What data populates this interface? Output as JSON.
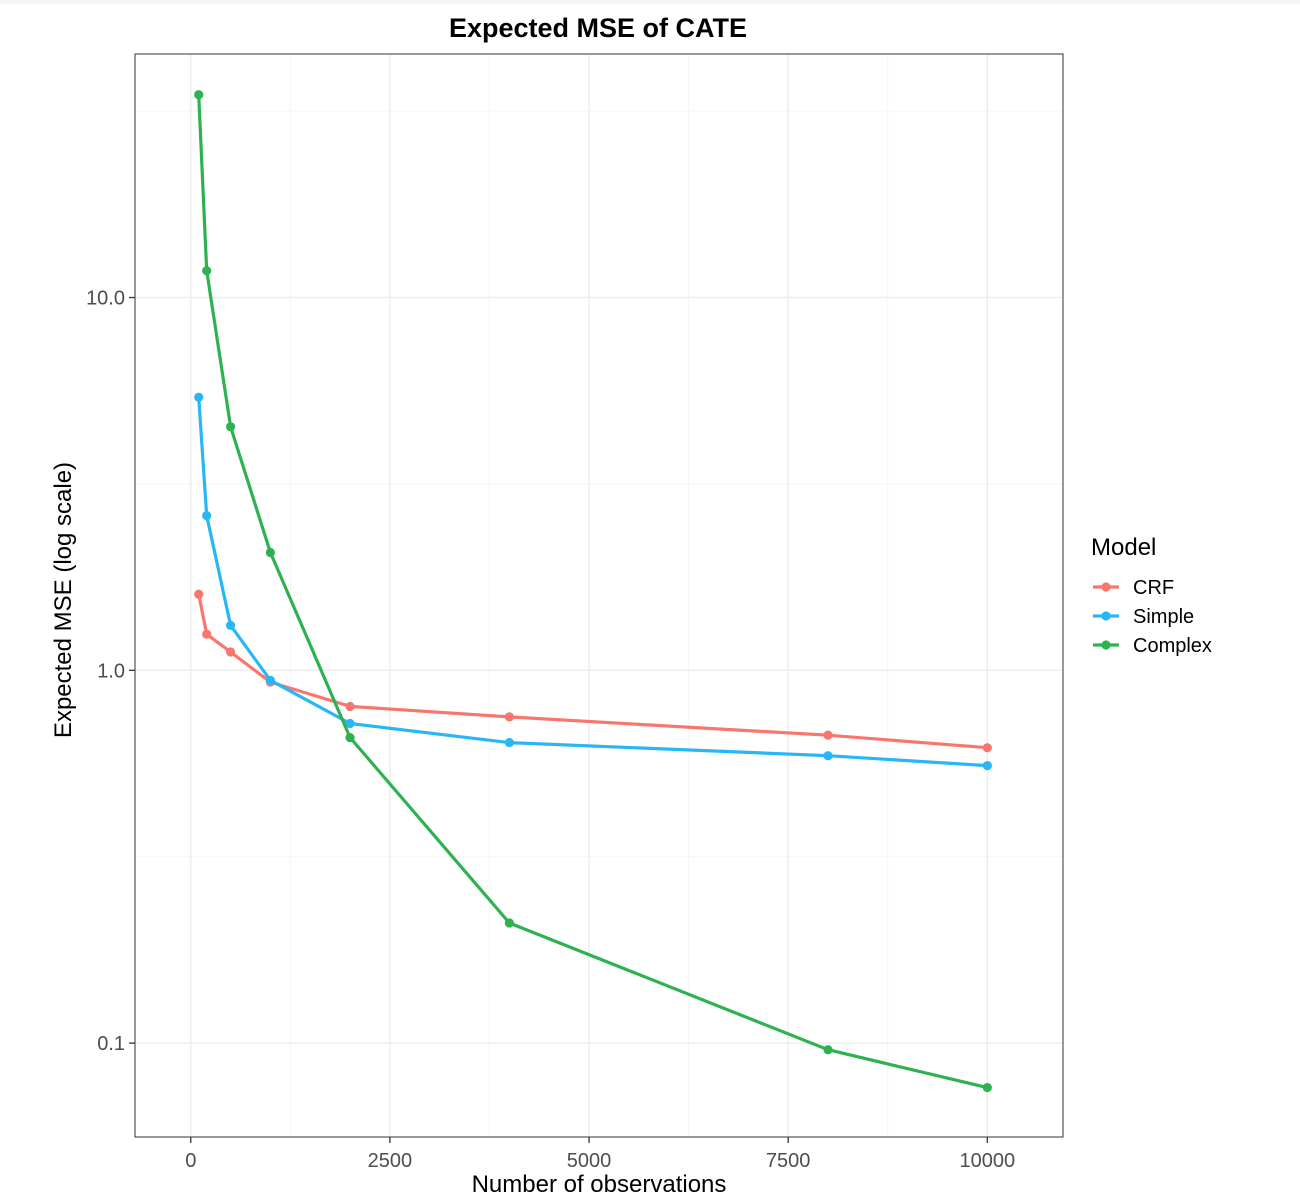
{
  "chart_data": {
    "type": "line",
    "title": "Expected MSE of CATE",
    "xlabel": "Number of observations",
    "ylabel": "Expected MSE (log scale)",
    "y_scale": "log10",
    "xlim": [
      -700,
      10950
    ],
    "ylim": [
      0.056,
      45
    ],
    "x_ticks": [
      0,
      2500,
      5000,
      7500,
      10000
    ],
    "x_tick_labels": [
      "0",
      "2500",
      "5000",
      "7500",
      "10000"
    ],
    "y_ticks": [
      0.1,
      1.0,
      10.0
    ],
    "y_tick_labels": [
      "0.1",
      "1.0",
      "10.0"
    ],
    "grid": true,
    "legend": {
      "title": "Model",
      "position": "right"
    },
    "x": [
      100,
      200,
      500,
      1000,
      2000,
      4000,
      8000,
      10000
    ],
    "series": [
      {
        "name": "CRF",
        "color": "#F8766D",
        "values": [
          1.6,
          1.25,
          1.12,
          0.93,
          0.8,
          0.75,
          0.67,
          0.62
        ]
      },
      {
        "name": "Simple",
        "color": "#29B6F6",
        "values": [
          5.4,
          2.6,
          1.32,
          0.94,
          0.72,
          0.64,
          0.59,
          0.555
        ]
      },
      {
        "name": "Complex",
        "color": "#2EB251",
        "values": [
          35.0,
          11.8,
          4.5,
          2.07,
          0.66,
          0.21,
          0.096,
          0.076
        ]
      }
    ]
  },
  "colors": {
    "panel_border": "#333333",
    "grid_major": "#ebebeb",
    "grid_minor": "#f5f5f5"
  }
}
